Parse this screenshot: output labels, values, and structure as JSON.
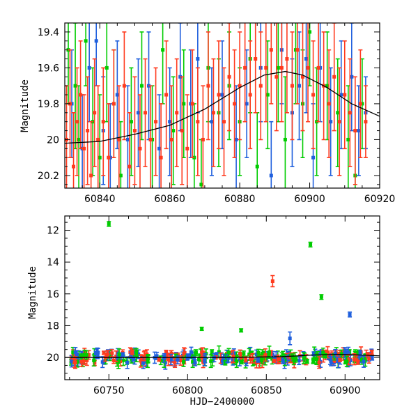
{
  "chart_data": [
    {
      "type": "scatter",
      "panel": "top",
      "title": "",
      "xlabel": "",
      "ylabel": "Magnitude",
      "xlim": [
        60830,
        60920
      ],
      "ylim": [
        20.27,
        19.35
      ],
      "y_inverted": true,
      "grid": false,
      "xticks": [
        60840,
        60860,
        60880,
        60900,
        60920
      ],
      "yticks": [
        19.4,
        19.6,
        19.8,
        20,
        20.2
      ],
      "xtick_labels": [
        "60840",
        "60860",
        "60880",
        "60900",
        "60920"
      ],
      "ytick_labels": [
        "19.4",
        "19.6",
        "19.8",
        "20",
        "20.2"
      ],
      "series": [
        {
          "color": "#00cc00",
          "points": [
            [
              60831,
              19.5,
              0.3
            ],
            [
              60833,
              19.7,
              0.35
            ],
            [
              60834,
              20.0,
              0.3
            ],
            [
              60836,
              19.45,
              0.25
            ],
            [
              60838,
              19.9,
              0.3
            ],
            [
              60840,
              20.1,
              0.35
            ],
            [
              60842,
              19.6,
              0.3
            ],
            [
              60844,
              19.8,
              0.3
            ],
            [
              60846,
              20.2,
              0.3
            ],
            [
              60849,
              19.9,
              0.3
            ],
            [
              60852,
              19.7,
              0.3
            ],
            [
              60855,
              20.0,
              0.3
            ],
            [
              60858,
              19.5,
              0.3
            ],
            [
              60861,
              19.95,
              0.3
            ],
            [
              60864,
              19.8,
              0.3
            ],
            [
              60867,
              20.1,
              0.3
            ],
            [
              60869,
              20.25,
              0.25
            ],
            [
              60871,
              19.6,
              0.3
            ],
            [
              60874,
              19.85,
              0.3
            ],
            [
              60877,
              19.7,
              0.3
            ],
            [
              60880,
              19.9,
              0.3
            ],
            [
              60883,
              19.55,
              0.3
            ],
            [
              60885,
              20.15,
              0.3
            ],
            [
              60888,
              19.75,
              0.3
            ],
            [
              60891,
              19.6,
              0.3
            ],
            [
              60893,
              20.0,
              0.35
            ],
            [
              60896,
              19.5,
              0.3
            ],
            [
              60898,
              19.8,
              0.3
            ],
            [
              60900,
              19.4,
              0.3
            ],
            [
              60902,
              19.9,
              0.3
            ],
            [
              60905,
              19.7,
              0.3
            ],
            [
              60908,
              19.85,
              0.3
            ],
            [
              60911,
              20.0,
              0.3
            ],
            [
              60913,
              20.2,
              0.25
            ],
            [
              60915,
              19.8,
              0.25
            ]
          ]
        },
        {
          "color": "#1f5fdd",
          "points": [
            [
              60832,
              19.8,
              0.3
            ],
            [
              60835,
              20.05,
              0.3
            ],
            [
              60837,
              19.6,
              0.3
            ],
            [
              60839,
              19.45,
              0.25
            ],
            [
              60841,
              19.95,
              0.3
            ],
            [
              60843,
              20.1,
              0.3
            ],
            [
              60845,
              19.75,
              0.3
            ],
            [
              60848,
              20.0,
              0.3
            ],
            [
              60851,
              19.85,
              0.3
            ],
            [
              60854,
              19.7,
              0.3
            ],
            [
              60857,
              20.05,
              0.3
            ],
            [
              60860,
              19.9,
              0.3
            ],
            [
              60863,
              19.65,
              0.3
            ],
            [
              60866,
              19.8,
              0.3
            ],
            [
              60868,
              19.55,
              0.3
            ],
            [
              60872,
              19.9,
              0.3
            ],
            [
              60875,
              19.75,
              0.3
            ],
            [
              60879,
              20.0,
              0.3
            ],
            [
              60882,
              19.8,
              0.3
            ],
            [
              60886,
              19.6,
              0.3
            ],
            [
              60889,
              20.2,
              0.3
            ],
            [
              60892,
              19.5,
              0.3
            ],
            [
              60895,
              19.85,
              0.3
            ],
            [
              60897,
              19.7,
              0.3
            ],
            [
              60899,
              19.55,
              0.3
            ],
            [
              60901,
              20.1,
              0.3
            ],
            [
              60903,
              19.6,
              0.3
            ],
            [
              60906,
              19.9,
              0.3
            ],
            [
              60909,
              19.75,
              0.3
            ],
            [
              60912,
              19.65,
              0.3
            ],
            [
              60914,
              19.95,
              0.25
            ],
            [
              60916,
              19.85,
              0.2
            ]
          ]
        },
        {
          "color": "#ff3b1f",
          "points": [
            [
              60830.5,
              20.0,
              0.3
            ],
            [
              60831.5,
              19.8,
              0.3
            ],
            [
              60832.5,
              20.15,
              0.3
            ],
            [
              60833.5,
              19.9,
              0.3
            ],
            [
              60834.5,
              19.75,
              0.3
            ],
            [
              60835.5,
              20.05,
              0.3
            ],
            [
              60836.5,
              19.95,
              0.3
            ],
            [
              60837.5,
              20.2,
              0.3
            ],
            [
              60838.5,
              19.85,
              0.3
            ],
            [
              60839.5,
              20.0,
              0.3
            ],
            [
              60841,
              19.9,
              0.3
            ],
            [
              60842.5,
              20.1,
              0.3
            ],
            [
              60844,
              19.8,
              0.3
            ],
            [
              60845.5,
              20.0,
              0.3
            ],
            [
              60847,
              19.7,
              0.3
            ],
            [
              60848.5,
              20.15,
              0.3
            ],
            [
              60850,
              19.95,
              0.3
            ],
            [
              60851.5,
              20.05,
              0.3
            ],
            [
              60853,
              19.85,
              0.3
            ],
            [
              60854.5,
              20.0,
              0.3
            ],
            [
              60856,
              19.9,
              0.3
            ],
            [
              60857.5,
              20.1,
              0.3
            ],
            [
              60859,
              19.75,
              0.3
            ],
            [
              60860.5,
              20.0,
              0.3
            ],
            [
              60862,
              19.85,
              0.3
            ],
            [
              60863.5,
              19.95,
              0.3
            ],
            [
              60865,
              20.05,
              0.3
            ],
            [
              60866.5,
              19.8,
              0.3
            ],
            [
              60868,
              19.9,
              0.3
            ],
            [
              60869.5,
              20.0,
              0.3
            ],
            [
              60871,
              19.7,
              0.3
            ],
            [
              60872.5,
              19.85,
              0.3
            ],
            [
              60874,
              19.75,
              0.3
            ],
            [
              60875.5,
              19.9,
              0.3
            ],
            [
              60877,
              19.65,
              0.3
            ],
            [
              60878.5,
              19.8,
              0.3
            ],
            [
              60880,
              19.7,
              0.3
            ],
            [
              60881.5,
              19.6,
              0.3
            ],
            [
              60883,
              19.75,
              0.3
            ],
            [
              60884.5,
              19.55,
              0.3
            ],
            [
              60886,
              19.7,
              0.3
            ],
            [
              60887.5,
              19.6,
              0.3
            ],
            [
              60889,
              19.5,
              0.3
            ],
            [
              60890.5,
              19.65,
              0.3
            ],
            [
              60892,
              19.6,
              0.3
            ],
            [
              60893.5,
              19.55,
              0.3
            ],
            [
              60895,
              19.7,
              0.3
            ],
            [
              60896.5,
              19.5,
              0.3
            ],
            [
              60898,
              19.65,
              0.3
            ],
            [
              60899.5,
              19.6,
              0.3
            ],
            [
              60901,
              19.75,
              0.3
            ],
            [
              60902.5,
              19.6,
              0.3
            ],
            [
              60904,
              19.7,
              0.3
            ],
            [
              60905.5,
              19.8,
              0.3
            ],
            [
              60907,
              19.65,
              0.3
            ],
            [
              60908.5,
              19.9,
              0.3
            ],
            [
              60910,
              19.75,
              0.3
            ],
            [
              60911.5,
              19.85,
              0.3
            ],
            [
              60913,
              19.95,
              0.3
            ],
            [
              60914.5,
              19.8,
              0.3
            ],
            [
              60916,
              19.9,
              0.2
            ]
          ]
        }
      ],
      "model_curve": {
        "color": "#000000",
        "points": [
          [
            60830,
            20.02
          ],
          [
            60840,
            20.01
          ],
          [
            60850,
            19.97
          ],
          [
            60860,
            19.92
          ],
          [
            60870,
            19.83
          ],
          [
            60880,
            19.71
          ],
          [
            60887,
            19.64
          ],
          [
            60893,
            19.62
          ],
          [
            60898,
            19.64
          ],
          [
            60905,
            19.71
          ],
          [
            60912,
            19.8
          ],
          [
            60920,
            19.87
          ]
        ]
      }
    },
    {
      "type": "scatter",
      "panel": "bottom",
      "title": "",
      "xlabel": "HJD−2400000",
      "ylabel": "Magnitude",
      "xlim": [
        60722,
        60922
      ],
      "ylim": [
        21.4,
        11.1
      ],
      "y_inverted": true,
      "grid": false,
      "xticks": [
        60750,
        60800,
        60850,
        60900
      ],
      "yticks": [
        12,
        14,
        16,
        18,
        20
      ],
      "xtick_labels": [
        "60750",
        "60800",
        "60850",
        "60900"
      ],
      "ytick_labels": [
        "12",
        "14",
        "16",
        "18",
        "20"
      ],
      "outliers": [
        {
          "color": "#00cc00",
          "x": 60750,
          "y": 11.6,
          "err": 0.15
        },
        {
          "color": "#00cc00",
          "x": 60878,
          "y": 12.9,
          "err": 0.15
        },
        {
          "color": "#00cc00",
          "x": 60885,
          "y": 16.2,
          "err": 0.15
        },
        {
          "color": "#00cc00",
          "x": 60809,
          "y": 18.2,
          "err": 0.1
        },
        {
          "color": "#00cc00",
          "x": 60834,
          "y": 18.3,
          "err": 0.1
        },
        {
          "color": "#ff3b1f",
          "x": 60854,
          "y": 15.2,
          "err": 0.35
        },
        {
          "color": "#1f5fdd",
          "x": 60903,
          "y": 17.3,
          "err": 0.15
        },
        {
          "color": "#1f5fdd",
          "x": 60865,
          "y": 18.8,
          "err": 0.4
        }
      ],
      "bulk": {
        "x_range": [
          60726,
          60918
        ],
        "baseline": 20.0,
        "colors": [
          "#00cc00",
          "#1f5fdd",
          "#ff3b1f"
        ]
      },
      "model_curve": {
        "color": "#000000",
        "points": [
          [
            60722,
            20.0
          ],
          [
            60830,
            20.0
          ],
          [
            60860,
            19.95
          ],
          [
            60880,
            19.85
          ],
          [
            60895,
            19.8
          ],
          [
            60910,
            19.85
          ],
          [
            60922,
            19.9
          ]
        ]
      }
    }
  ]
}
